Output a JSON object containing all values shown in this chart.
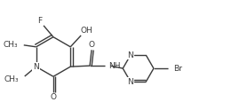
{
  "bg_color": "#ffffff",
  "line_color": "#3a3a3a",
  "line_width": 1.0,
  "font_size": 6.5,
  "xlim": [
    0.0,
    2.7
  ],
  "ylim": [
    0.0,
    1.24
  ]
}
